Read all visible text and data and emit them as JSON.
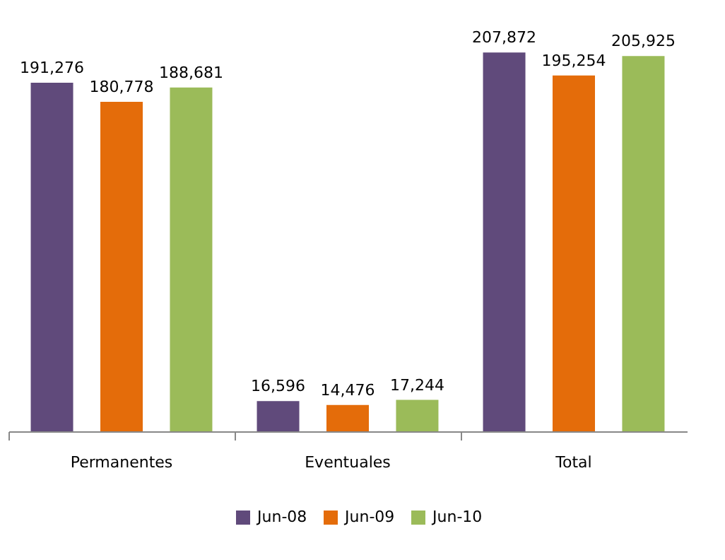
{
  "chart_data": {
    "type": "bar",
    "categories": [
      "Permanentes",
      "Eventuales",
      "Total"
    ],
    "series": [
      {
        "name": "Jun-08",
        "color": "#604a7b",
        "values": [
          191276,
          16596,
          207872
        ],
        "value_labels": [
          "191,276",
          "16,596",
          "207,872"
        ]
      },
      {
        "name": "Jun-09",
        "color": "#e46c0a",
        "values": [
          180778,
          14476,
          195254
        ],
        "value_labels": [
          "180,778",
          "14,476",
          "195,254"
        ]
      },
      {
        "name": "Jun-10",
        "color": "#9bbb59",
        "values": [
          188681,
          17244,
          205925
        ],
        "value_labels": [
          "188,681",
          "17,244",
          "205,925"
        ]
      }
    ],
    "legend": "bottom"
  }
}
